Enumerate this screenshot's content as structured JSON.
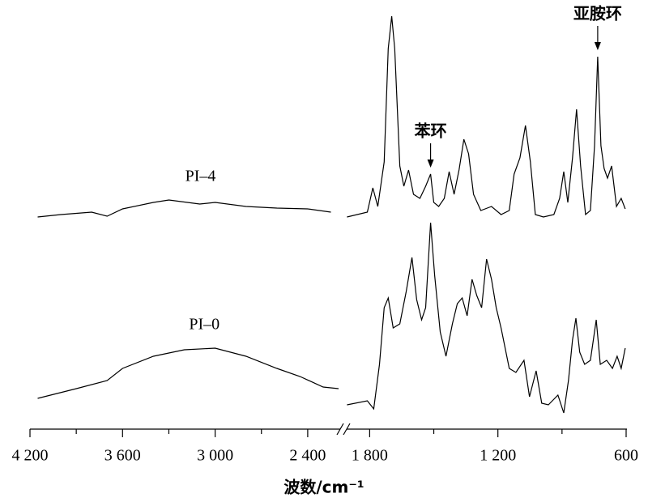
{
  "chart_data": {
    "type": "line",
    "x_label": "波数/cm⁻¹",
    "x_segments": [
      [
        4200,
        2200
      ],
      [
        1900,
        600
      ]
    ],
    "ylim": [
      0,
      52
    ],
    "xticks": [
      {
        "value": 4200,
        "label": "4 200"
      },
      {
        "value": 3600,
        "label": "3 600"
      },
      {
        "value": 3000,
        "label": "3 000"
      },
      {
        "value": 2400,
        "label": "2 400"
      },
      {
        "value": 1800,
        "label": "1 800"
      },
      {
        "value": 1200,
        "label": "1 200"
      },
      600
    ],
    "xminor_ticks": [
      3900,
      3300,
      2700,
      1500,
      900
    ],
    "series": [
      {
        "name": "PI–4",
        "color": "#000000",
        "x": [
          4150,
          4000,
          3800,
          3700,
          3600,
          3400,
          3300,
          3100,
          3000,
          2800,
          2600,
          2400,
          2250,
          null,
          1906,
          1811,
          1785,
          1762,
          1732,
          1713,
          1697,
          1683,
          1659,
          1640,
          1618,
          1595,
          1565,
          1538,
          1515,
          1500,
          1477,
          1451,
          1428,
          1405,
          1382,
          1359,
          1337,
          1314,
          1280,
          1230,
          1185,
          1147,
          1124,
          1097,
          1071,
          1048,
          1025,
          987,
          938,
          911,
          892,
          873,
          851,
          832,
          813,
          790,
          767,
          748,
          733,
          718,
          703,
          687,
          668,
          645,
          623,
          604
        ],
        "values": [
          26.2,
          26.5,
          26.8,
          26.3,
          27.2,
          28,
          28.3,
          27.8,
          28,
          27.5,
          27.3,
          27.2,
          26.8,
          null,
          26.2,
          26.8,
          29.8,
          27.5,
          33,
          47,
          51,
          47,
          32.5,
          30,
          32,
          29,
          28.5,
          30,
          31.5,
          28,
          27.5,
          28.5,
          31.8,
          29,
          32,
          35.8,
          34,
          29,
          27,
          27.5,
          26.5,
          27,
          31.5,
          33.5,
          37.5,
          33,
          26.5,
          26.2,
          26.5,
          28.5,
          31.8,
          28,
          33.5,
          39.5,
          32.5,
          26.5,
          27,
          35,
          46,
          35,
          32.2,
          31,
          32.5,
          27.5,
          28.5,
          27.2
        ]
      },
      {
        "name": "PI–0",
        "color": "#000000",
        "x": [
          4150,
          3900,
          3700,
          3600,
          3400,
          3200,
          3000,
          2800,
          2600,
          2450,
          2300,
          2200,
          null,
          1906,
          1811,
          1781,
          1754,
          1732,
          1713,
          1690,
          1659,
          1629,
          1602,
          1580,
          1557,
          1538,
          1515,
          1496,
          1470,
          1443,
          1413,
          1390,
          1367,
          1344,
          1321,
          1299,
          1276,
          1253,
          1230,
          1208,
          1185,
          1147,
          1116,
          1078,
          1052,
          1021,
          995,
          964,
          919,
          892,
          870,
          851,
          835,
          817,
          794,
          767,
          740,
          721,
          691,
          664,
          642,
          623,
          604
        ],
        "values": [
          3.8,
          5,
          6,
          7.5,
          9,
          9.8,
          10,
          9,
          7.5,
          6.5,
          5.2,
          5,
          null,
          3,
          3.5,
          2.5,
          8,
          15,
          16.2,
          12.5,
          13,
          17,
          21.2,
          16,
          13.5,
          15,
          25.5,
          19,
          12,
          9,
          13,
          15.5,
          16.2,
          14,
          18.5,
          16.5,
          15,
          21,
          18.5,
          15,
          12.5,
          7.5,
          7,
          8.5,
          4,
          7.2,
          3.2,
          3,
          4.2,
          2,
          6,
          11,
          13.7,
          9.5,
          8,
          8.5,
          13.5,
          8,
          8.5,
          7.5,
          9,
          7.5,
          10
        ]
      }
    ],
    "annotations": [
      {
        "text": "苯环",
        "x": 1515,
        "y": 31.5
      },
      {
        "text": "亚胺环",
        "x": 733,
        "y": 46
      }
    ]
  }
}
